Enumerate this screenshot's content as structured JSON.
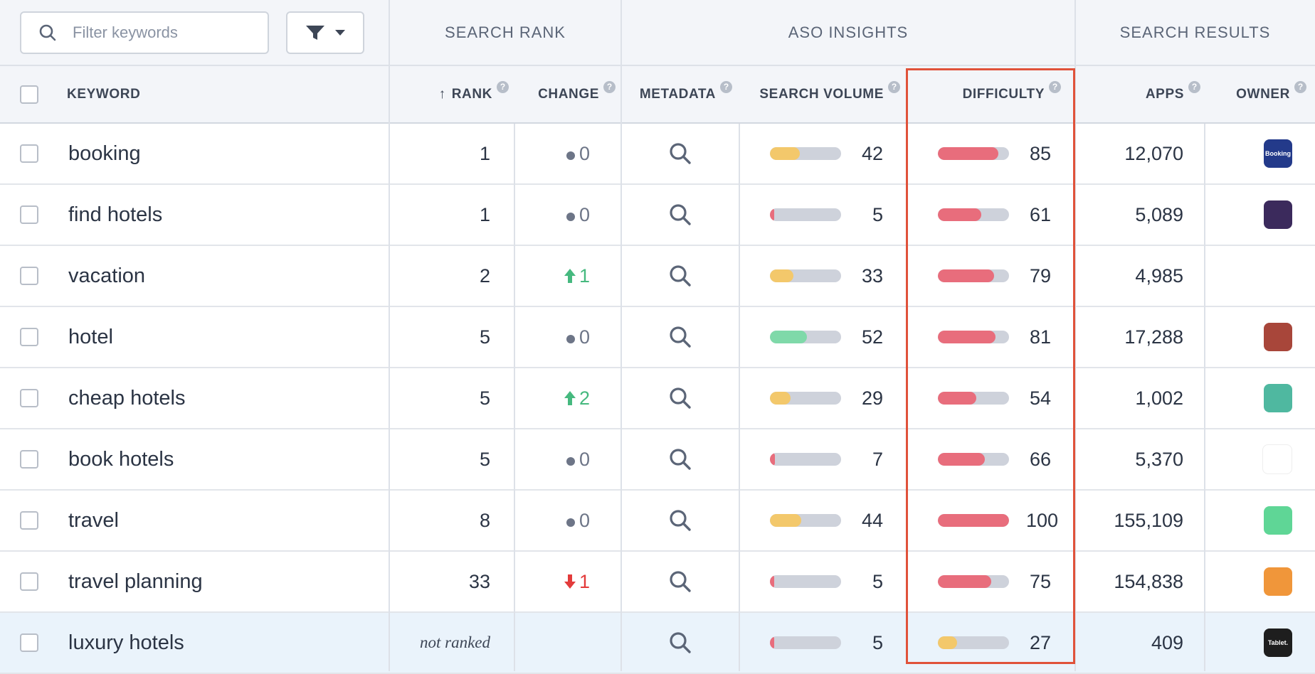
{
  "toolbar": {
    "filter_placeholder": "Filter keywords"
  },
  "groups": {
    "search_rank": "SEARCH RANK",
    "aso_insights": "ASO INSIGHTS",
    "search_results": "SEARCH RESULTS"
  },
  "columns": {
    "keyword": "KEYWORD",
    "rank": "RANK",
    "rank_sort": "↑",
    "change": "CHANGE",
    "metadata": "METADATA",
    "search_volume": "SEARCH VOLUME",
    "difficulty": "DIFFICULTY",
    "apps": "APPS",
    "owner": "OWNER",
    "help": "?"
  },
  "colors": {
    "volume_yellow": "#f3c86b",
    "volume_green": "#7fd9a9",
    "volume_red": "#e86d7c",
    "difficulty_red": "#e86d7c",
    "difficulty_yellow": "#f3c86b",
    "highlight_border": "#e0523a",
    "highlight_row": "#eaf3fb"
  },
  "rows": [
    {
      "keyword": "booking",
      "rank": "1",
      "change": "0",
      "change_dir": "none",
      "volume": "42",
      "volume_color": "#f3c86b",
      "difficulty": "85",
      "difficulty_color": "#e86d7c",
      "apps": "12,070",
      "owner_icon": "booking-app-icon",
      "owner_label": "Booking",
      "owner_color": "#233a8a"
    },
    {
      "keyword": "find hotels",
      "rank": "1",
      "change": "0",
      "change_dir": "none",
      "volume": "5",
      "volume_color": "#e86d7c",
      "difficulty": "61",
      "difficulty_color": "#e86d7c",
      "apps": "5,089",
      "owner_icon": "bed-app-icon",
      "owner_label": "",
      "owner_color": "#3b2a5c"
    },
    {
      "keyword": "vacation",
      "rank": "2",
      "change": "1",
      "change_dir": "up",
      "volume": "33",
      "volume_color": "#f3c86b",
      "difficulty": "79",
      "difficulty_color": "#e86d7c",
      "apps": "4,985",
      "owner_icon": "",
      "owner_label": "",
      "owner_color": ""
    },
    {
      "keyword": "hotel",
      "rank": "5",
      "change": "0",
      "change_dir": "none",
      "volume": "52",
      "volume_color": "#7fd9a9",
      "difficulty": "81",
      "difficulty_color": "#e86d7c",
      "apps": "17,288",
      "owner_icon": "hotel-game-app-icon",
      "owner_label": "",
      "owner_color": "#a8463a"
    },
    {
      "keyword": "cheap hotels",
      "rank": "5",
      "change": "2",
      "change_dir": "up",
      "volume": "29",
      "volume_color": "#f3c86b",
      "difficulty": "54",
      "difficulty_color": "#e86d7c",
      "apps": "1,002",
      "owner_icon": "door-tag-app-icon",
      "owner_label": "",
      "owner_color": "#4fb8a0"
    },
    {
      "keyword": "book hotels",
      "rank": "5",
      "change": "0",
      "change_dir": "none",
      "volume": "7",
      "volume_color": "#e86d7c",
      "difficulty": "66",
      "difficulty_color": "#e86d7c",
      "apps": "5,370",
      "owner_icon": "hotels-h-app-icon",
      "owner_label": "",
      "owner_color": "#ffffff"
    },
    {
      "keyword": "travel",
      "rank": "8",
      "change": "0",
      "change_dir": "none",
      "volume": "44",
      "volume_color": "#f3c86b",
      "difficulty": "100",
      "difficulty_color": "#e86d7c",
      "apps": "155,109",
      "owner_icon": "tripadvisor-app-icon",
      "owner_label": "",
      "owner_color": "#5fd696"
    },
    {
      "keyword": "travel planning",
      "rank": "33",
      "change": "1",
      "change_dir": "down",
      "volume": "5",
      "volume_color": "#e86d7c",
      "difficulty": "75",
      "difficulty_color": "#e86d7c",
      "apps": "154,838",
      "owner_icon": "route-app-icon",
      "owner_label": "",
      "owner_color": "#f0963a"
    },
    {
      "keyword": "luxury hotels",
      "rank": "not ranked",
      "change": "",
      "change_dir": "blank",
      "volume": "5",
      "volume_color": "#e86d7c",
      "difficulty": "27",
      "difficulty_color": "#f3c86b",
      "apps": "409",
      "owner_icon": "tablet-app-icon",
      "owner_label": "Tablet.",
      "owner_color": "#1e1e1e"
    }
  ]
}
